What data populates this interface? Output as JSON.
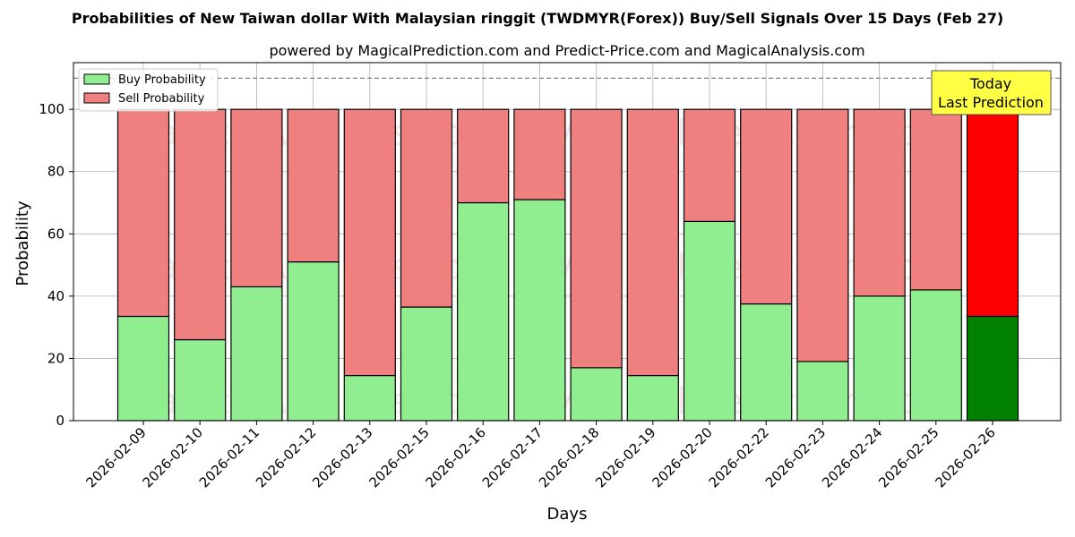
{
  "chart_data": {
    "type": "bar",
    "stacked": true,
    "title": "Probabilities of New Taiwan dollar With Malaysian ringgit (TWDMYR(Forex)) Buy/Sell Signals Over 15 Days (Feb 27)",
    "subtitle": "powered by MagicalPrediction.com and Predict-Price.com and MagicalAnalysis.com",
    "xlabel": "Days",
    "ylabel": "Probability",
    "ylim": [
      0,
      115
    ],
    "yticks": [
      0,
      20,
      40,
      60,
      80,
      100
    ],
    "reference_line": 110,
    "grid": true,
    "legend_position": "top-left",
    "categories": [
      "2026-02-09",
      "2026-02-10",
      "2026-02-11",
      "2026-02-12",
      "2026-02-13",
      "2026-02-15",
      "2026-02-16",
      "2026-02-17",
      "2026-02-18",
      "2026-02-19",
      "2026-02-20",
      "2026-02-22",
      "2026-02-23",
      "2026-02-24",
      "2026-02-25",
      "2026-02-26"
    ],
    "series": [
      {
        "name": "Buy Probability",
        "color": "#90ee90",
        "highlight_color": "#008000",
        "values": [
          33.5,
          26,
          43,
          51,
          14.5,
          36.5,
          70,
          71,
          17,
          14.5,
          64,
          37.5,
          19,
          40,
          42,
          33.5
        ]
      },
      {
        "name": "Sell Probability",
        "color": "#f08080",
        "highlight_color": "#ff0000",
        "values": [
          66.5,
          74,
          57,
          49,
          85.5,
          63.5,
          30,
          29,
          83,
          85.5,
          36,
          62.5,
          81,
          60,
          58,
          66.5
        ]
      }
    ],
    "highlight_index": 15,
    "annotation": {
      "line1": "Today",
      "line2": "Last Prediction",
      "color": "#ffff44"
    },
    "watermarks": [
      "MagicalAnalysis.com",
      "MagicalPrediction.com"
    ]
  }
}
